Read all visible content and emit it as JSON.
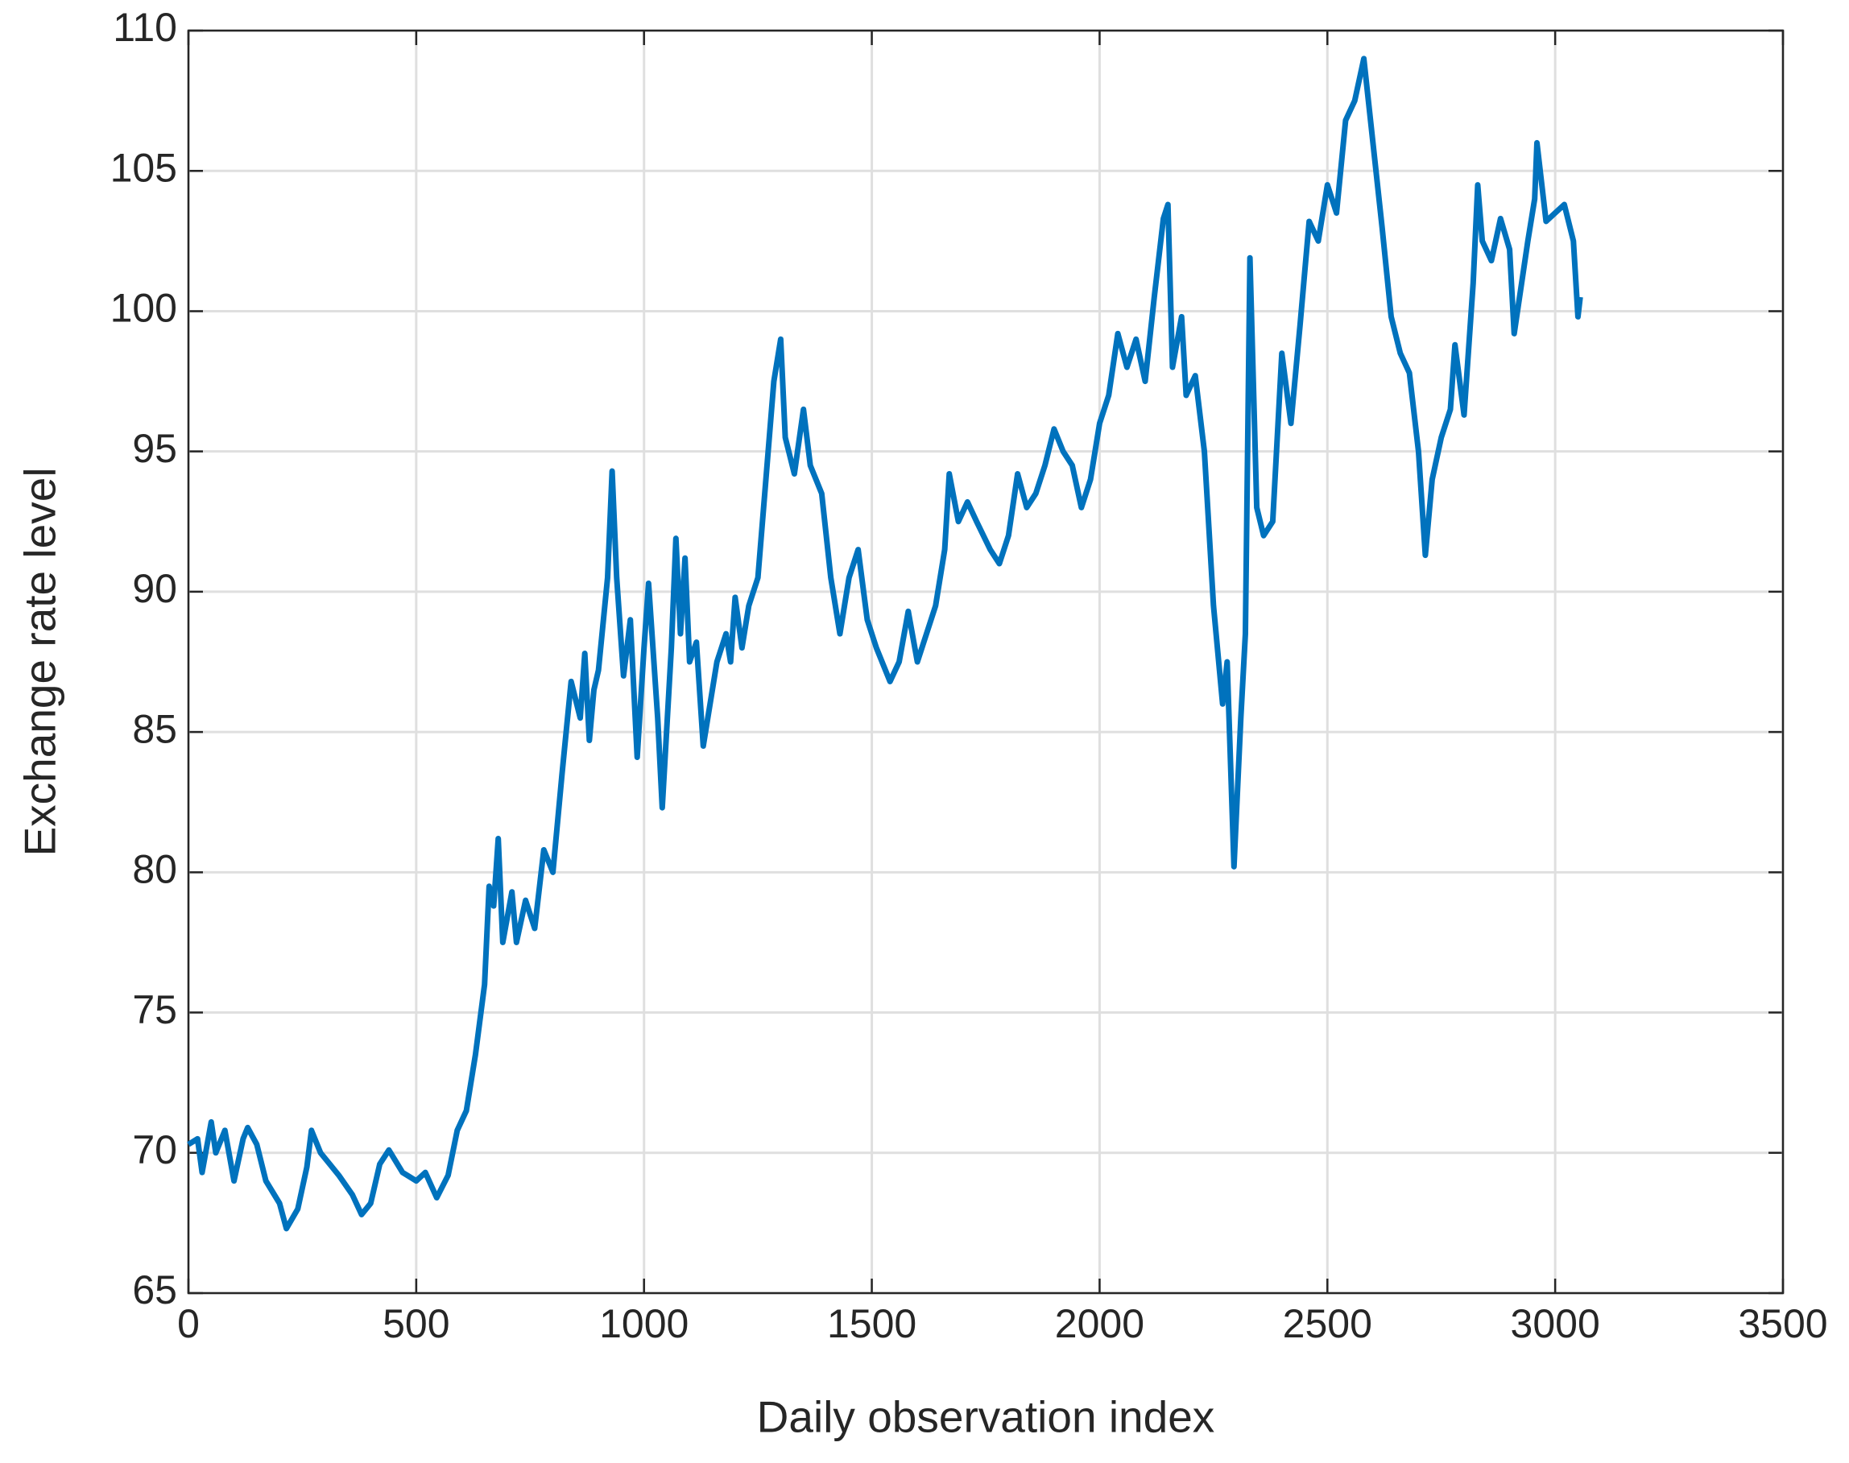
{
  "chart_data": {
    "type": "line",
    "x_label": "Daily observation index",
    "y_label": "Exchange rate level",
    "xlim": [
      0,
      3500
    ],
    "xticks": [
      0,
      500,
      1000,
      1500,
      2000,
      2500,
      3000,
      3500
    ],
    "ylim": [
      65,
      110
    ],
    "yticks": [
      65,
      70,
      75,
      80,
      85,
      90,
      95,
      100,
      105,
      110
    ],
    "grid": true,
    "series": [
      {
        "color": "#0072bd",
        "x": [
          0,
          20,
          30,
          50,
          60,
          80,
          100,
          120,
          130,
          150,
          170,
          200,
          215,
          240,
          260,
          270,
          290,
          310,
          330,
          360,
          380,
          400,
          420,
          440,
          470,
          500,
          520,
          545,
          570,
          590,
          610,
          630,
          650,
          660,
          670,
          680,
          690,
          710,
          720,
          740,
          760,
          780,
          800,
          820,
          840,
          860,
          870,
          880,
          890,
          900,
          920,
          930,
          940,
          955,
          970,
          985,
          1000,
          1010,
          1030,
          1040,
          1060,
          1070,
          1080,
          1090,
          1100,
          1115,
          1130,
          1150,
          1160,
          1180,
          1190,
          1200,
          1215,
          1230,
          1250,
          1270,
          1285,
          1300,
          1310,
          1330,
          1350,
          1365,
          1390,
          1410,
          1430,
          1450,
          1470,
          1490,
          1510,
          1540,
          1560,
          1580,
          1600,
          1620,
          1640,
          1660,
          1670,
          1690,
          1710,
          1730,
          1760,
          1780,
          1800,
          1820,
          1840,
          1860,
          1880,
          1900,
          1920,
          1940,
          1960,
          1980,
          2000,
          2020,
          2040,
          2060,
          2080,
          2100,
          2120,
          2140,
          2150,
          2160,
          2180,
          2190,
          2210,
          2230,
          2250,
          2270,
          2280,
          2295,
          2310,
          2320,
          2330,
          2345,
          2360,
          2380,
          2400,
          2420,
          2440,
          2460,
          2480,
          2500,
          2520,
          2540,
          2560,
          2580,
          2600,
          2620,
          2640,
          2660,
          2680,
          2700,
          2715,
          2730,
          2750,
          2770,
          2780,
          2800,
          2820,
          2830,
          2840,
          2860,
          2880,
          2900,
          2910,
          2940,
          2955,
          2960,
          2980,
          3000,
          3020,
          3040,
          3050,
          3055
        ],
        "values": [
          70.3,
          70.5,
          69.3,
          71.1,
          70,
          70.8,
          69,
          70.5,
          70.9,
          70.3,
          69,
          68.2,
          67.3,
          68,
          69.5,
          70.8,
          70,
          69.6,
          69.2,
          68.5,
          67.8,
          68.2,
          69.6,
          70.1,
          69.3,
          69,
          69.3,
          68.4,
          69.2,
          70.8,
          71.5,
          73.5,
          76,
          79.5,
          78.8,
          81.2,
          77.5,
          79.3,
          77.5,
          79,
          78,
          80.8,
          80,
          83.5,
          86.8,
          85.5,
          87.8,
          84.7,
          86.5,
          87.2,
          90.5,
          94.3,
          90.5,
          87,
          89,
          84.1,
          88,
          90.3,
          85.5,
          82.3,
          88,
          91.9,
          88.5,
          91.2,
          87.5,
          88.2,
          84.5,
          86.5,
          87.5,
          88.5,
          87.5,
          89.8,
          88,
          89.5,
          90.5,
          94.5,
          97.5,
          99,
          95.5,
          94.2,
          96.5,
          94.5,
          93.5,
          90.5,
          88.5,
          90.5,
          91.5,
          89,
          88,
          86.8,
          87.5,
          89.3,
          87.5,
          88.5,
          89.5,
          91.5,
          94.2,
          92.5,
          93.2,
          92.5,
          91.5,
          91,
          92,
          94.2,
          93,
          93.5,
          94.5,
          95.8,
          95,
          94.5,
          93,
          94,
          96,
          97,
          99.2,
          98,
          99,
          97.5,
          100.5,
          103.3,
          103.8,
          98,
          99.8,
          97,
          97.7,
          95,
          89.5,
          86,
          87.5,
          80.2,
          85.5,
          88.5,
          101.9,
          93,
          92,
          92.5,
          98.5,
          96,
          99.5,
          103.2,
          102.5,
          104.5,
          103.5,
          106.8,
          107.5,
          109,
          106,
          103,
          99.8,
          98.5,
          97.8,
          95,
          91.3,
          94,
          95.5,
          96.5,
          98.8,
          96.3,
          101,
          104.5,
          102.5,
          101.8,
          103.3,
          102.2,
          99.2,
          102.5,
          104,
          106,
          103.2,
          103.5,
          103.8,
          102.5,
          99.8,
          100.5
        ]
      }
    ]
  }
}
